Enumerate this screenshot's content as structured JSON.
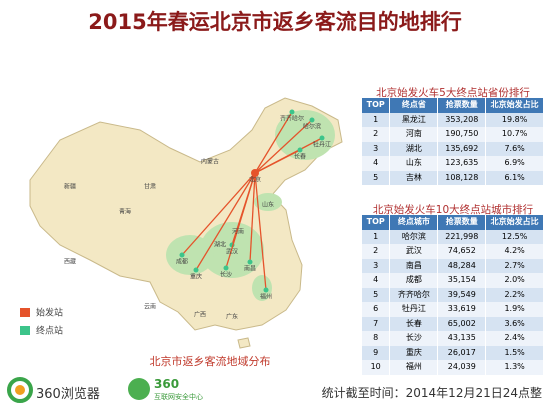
{
  "title": "2015年春运北京市返乡客流目的地排行",
  "map": {
    "caption": "北京市返乡客流地域分布",
    "legend": [
      "始发站",
      "终点站"
    ],
    "labels": [
      "北京",
      "哈尔滨",
      "齐齐哈尔",
      "牡丹江",
      "长春",
      "武汉",
      "长沙",
      "南昌",
      "福州",
      "成都",
      "重庆",
      "新疆",
      "西藏",
      "青海",
      "甘肃",
      "内蒙古",
      "云南",
      "广东",
      "广西",
      "山东",
      "河南",
      "湖北"
    ]
  },
  "tables": [
    {
      "title": "北京始发火车5大终点站省份排行",
      "headers": [
        "TOP",
        "终点省",
        "抢票数量",
        "北京始发占比"
      ],
      "rows": [
        [
          "1",
          "黑龙江",
          "353,208",
          "19.8%"
        ],
        [
          "2",
          "河南",
          "190,750",
          "10.7%"
        ],
        [
          "3",
          "湖北",
          "135,692",
          "7.6%"
        ],
        [
          "4",
          "山东",
          "123,635",
          "6.9%"
        ],
        [
          "5",
          "吉林",
          "108,128",
          "6.1%"
        ]
      ]
    },
    {
      "title": "北京始发火车10大终点站城市排行",
      "headers": [
        "TOP",
        "终点城市",
        "抢票数量",
        "北京始发占比"
      ],
      "rows": [
        [
          "1",
          "哈尔滨",
          "221,998",
          "12.5%"
        ],
        [
          "2",
          "武汉",
          "74,652",
          "4.2%"
        ],
        [
          "3",
          "南昌",
          "48,284",
          "2.7%"
        ],
        [
          "4",
          "成都",
          "35,154",
          "2.0%"
        ],
        [
          "5",
          "齐齐哈尔",
          "39,549",
          "2.2%"
        ],
        [
          "6",
          "牡丹江",
          "33,619",
          "1.9%"
        ],
        [
          "7",
          "长春",
          "65,002",
          "3.6%"
        ],
        [
          "8",
          "长沙",
          "43,135",
          "2.4%"
        ],
        [
          "9",
          "重庆",
          "26,017",
          "1.5%"
        ],
        [
          "10",
          "福州",
          "24,039",
          "1.3%"
        ]
      ]
    }
  ],
  "footer": {
    "browser": "360浏览器",
    "security_logo": "360",
    "security": "互联网安全中心",
    "stats": "统计截至时间：2014年12月21日24点整"
  }
}
